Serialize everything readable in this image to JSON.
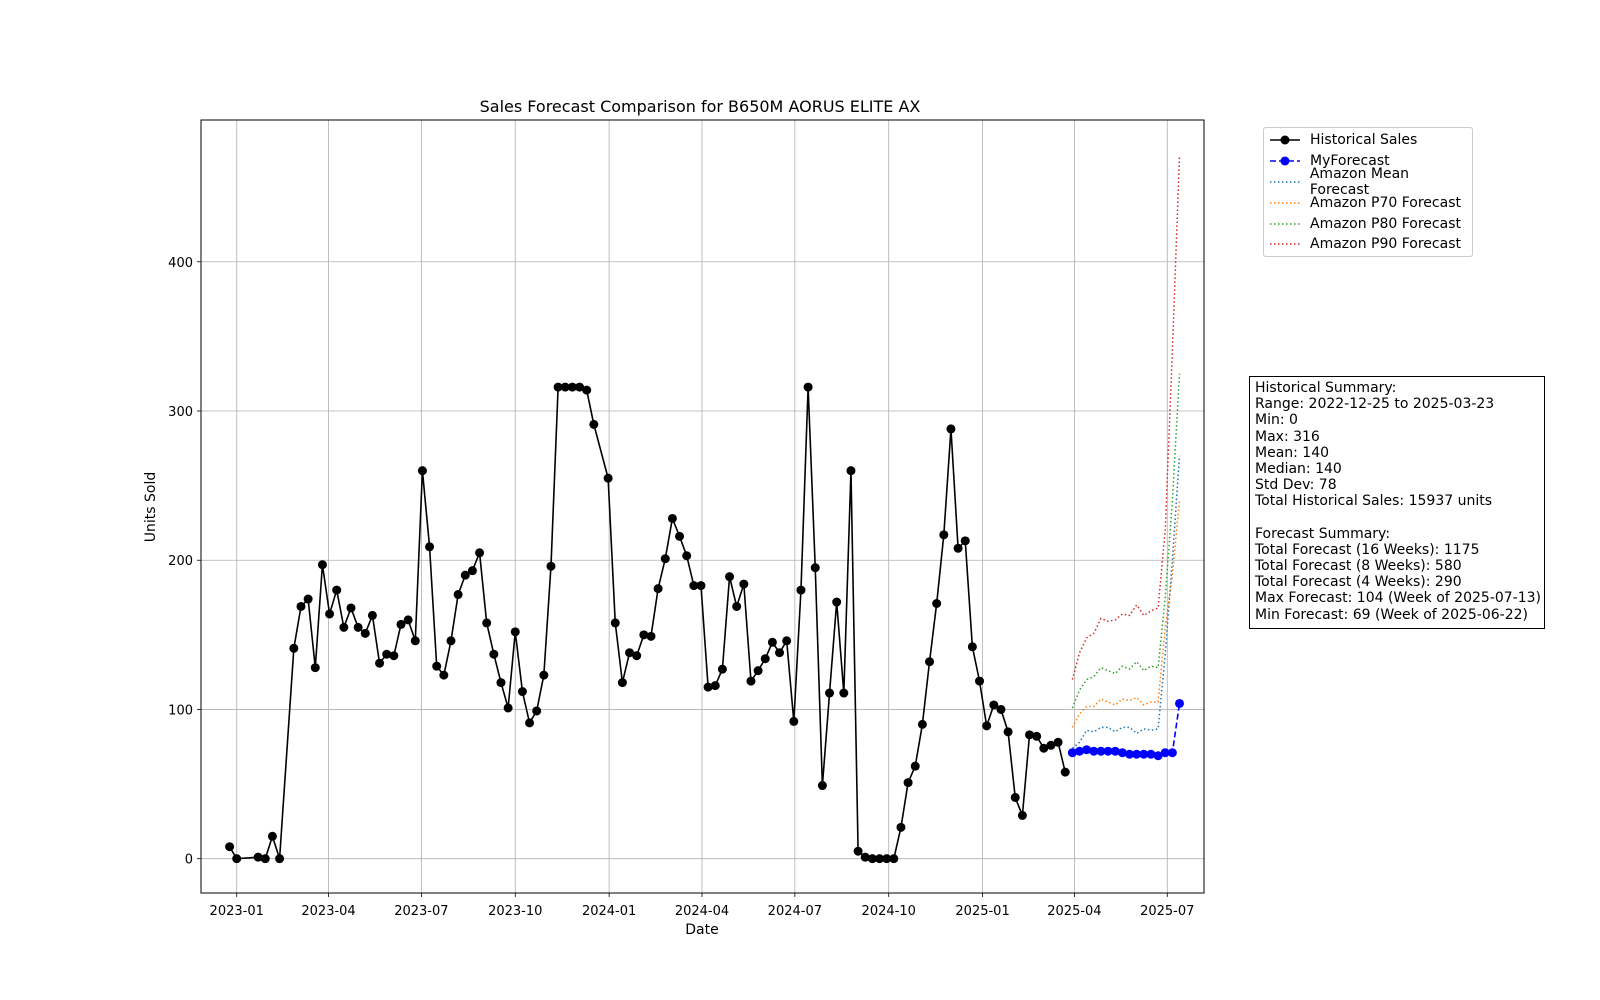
{
  "chart_data": {
    "type": "line",
    "title": "Sales Forecast Comparison for B650M AORUS ELITE AX",
    "xlabel": "Date",
    "ylabel": "Units Sold",
    "xlim": [
      "2022-11-27",
      "2025-08-06"
    ],
    "ylim": [
      -23,
      495
    ],
    "grid": true,
    "legend_placement": "outside-top-right",
    "x_ticks": [
      "2023-01",
      "2023-04",
      "2023-07",
      "2023-10",
      "2024-01",
      "2024-04",
      "2024-07",
      "2024-10",
      "2025-01",
      "2025-04",
      "2025-07"
    ],
    "y_ticks": [
      0,
      100,
      200,
      300,
      400
    ],
    "historical": {
      "name": "Historical Sales",
      "color": "#000000",
      "points": [
        [
          "2022-12-25",
          8
        ],
        [
          "2023-01-01",
          0
        ],
        [
          "2023-01-22",
          1
        ],
        [
          "2023-01-29",
          0
        ],
        [
          "2023-02-05",
          15
        ],
        [
          "2023-02-12",
          0
        ],
        [
          "2023-02-26",
          141
        ],
        [
          "2023-03-05",
          169
        ],
        [
          "2023-03-12",
          174
        ],
        [
          "2023-03-19",
          128
        ],
        [
          "2023-03-26",
          197
        ],
        [
          "2023-04-02",
          164
        ],
        [
          "2023-04-09",
          180
        ],
        [
          "2023-04-16",
          155
        ],
        [
          "2023-04-23",
          168
        ],
        [
          "2023-04-30",
          155
        ],
        [
          "2023-05-07",
          151
        ],
        [
          "2023-05-14",
          163
        ],
        [
          "2023-05-21",
          131
        ],
        [
          "2023-05-28",
          137
        ],
        [
          "2023-06-04",
          136
        ],
        [
          "2023-06-11",
          157
        ],
        [
          "2023-06-18",
          160
        ],
        [
          "2023-06-25",
          146
        ],
        [
          "2023-07-02",
          260
        ],
        [
          "2023-07-09",
          209
        ],
        [
          "2023-07-16",
          129
        ],
        [
          "2023-07-23",
          123
        ],
        [
          "2023-07-30",
          146
        ],
        [
          "2023-08-06",
          177
        ],
        [
          "2023-08-13",
          190
        ],
        [
          "2023-08-20",
          193
        ],
        [
          "2023-08-27",
          205
        ],
        [
          "2023-09-03",
          158
        ],
        [
          "2023-09-10",
          137
        ],
        [
          "2023-09-17",
          118
        ],
        [
          "2023-09-24",
          101
        ],
        [
          "2023-10-01",
          152
        ],
        [
          "2023-10-08",
          112
        ],
        [
          "2023-10-15",
          91
        ],
        [
          "2023-10-22",
          99
        ],
        [
          "2023-10-29",
          123
        ],
        [
          "2023-11-05",
          196
        ],
        [
          "2023-11-12",
          316
        ],
        [
          "2023-11-19",
          316
        ],
        [
          "2023-11-26",
          316
        ],
        [
          "2023-12-03",
          316
        ],
        [
          "2023-12-10",
          314
        ],
        [
          "2023-12-17",
          291
        ],
        [
          "2023-12-31",
          255
        ],
        [
          "2024-01-07",
          158
        ],
        [
          "2024-01-14",
          118
        ],
        [
          "2024-01-21",
          138
        ],
        [
          "2024-01-28",
          136
        ],
        [
          "2024-02-04",
          150
        ],
        [
          "2024-02-11",
          149
        ],
        [
          "2024-02-18",
          181
        ],
        [
          "2024-02-25",
          201
        ],
        [
          "2024-03-03",
          228
        ],
        [
          "2024-03-10",
          216
        ],
        [
          "2024-03-17",
          203
        ],
        [
          "2024-03-24",
          183
        ],
        [
          "2024-03-31",
          183
        ],
        [
          "2024-04-07",
          115
        ],
        [
          "2024-04-14",
          116
        ],
        [
          "2024-04-21",
          127
        ],
        [
          "2024-04-28",
          189
        ],
        [
          "2024-05-05",
          169
        ],
        [
          "2024-05-12",
          184
        ],
        [
          "2024-05-19",
          119
        ],
        [
          "2024-05-26",
          126
        ],
        [
          "2024-06-02",
          134
        ],
        [
          "2024-06-09",
          145
        ],
        [
          "2024-06-16",
          138
        ],
        [
          "2024-06-23",
          146
        ],
        [
          "2024-06-30",
          92
        ],
        [
          "2024-07-07",
          180
        ],
        [
          "2024-07-14",
          316
        ],
        [
          "2024-07-21",
          195
        ],
        [
          "2024-07-28",
          49
        ],
        [
          "2024-08-04",
          111
        ],
        [
          "2024-08-11",
          172
        ],
        [
          "2024-08-18",
          111
        ],
        [
          "2024-08-25",
          260
        ],
        [
          "2024-09-01",
          5
        ],
        [
          "2024-09-08",
          1
        ],
        [
          "2024-09-15",
          0
        ],
        [
          "2024-09-22",
          0
        ],
        [
          "2024-09-29",
          0
        ],
        [
          "2024-10-06",
          0
        ],
        [
          "2024-10-13",
          21
        ],
        [
          "2024-10-20",
          51
        ],
        [
          "2024-10-27",
          62
        ],
        [
          "2024-11-03",
          90
        ],
        [
          "2024-11-10",
          132
        ],
        [
          "2024-11-17",
          171
        ],
        [
          "2024-11-24",
          217
        ],
        [
          "2024-12-01",
          288
        ],
        [
          "2024-12-08",
          208
        ],
        [
          "2024-12-15",
          213
        ],
        [
          "2024-12-22",
          142
        ],
        [
          "2024-12-29",
          119
        ],
        [
          "2025-01-05",
          89
        ],
        [
          "2025-01-12",
          103
        ],
        [
          "2025-01-19",
          100
        ],
        [
          "2025-01-26",
          85
        ],
        [
          "2025-02-02",
          41
        ],
        [
          "2025-02-09",
          29
        ],
        [
          "2025-02-16",
          83
        ],
        [
          "2025-02-23",
          82
        ],
        [
          "2025-03-02",
          74
        ],
        [
          "2025-03-09",
          76
        ],
        [
          "2025-03-16",
          78
        ],
        [
          "2025-03-23",
          58
        ]
      ]
    },
    "forecast_dates": [
      "2025-03-30",
      "2025-04-06",
      "2025-04-13",
      "2025-04-20",
      "2025-04-27",
      "2025-05-04",
      "2025-05-11",
      "2025-05-18",
      "2025-05-25",
      "2025-06-01",
      "2025-06-08",
      "2025-06-15",
      "2025-06-22",
      "2025-06-29",
      "2025-07-06",
      "2025-07-13"
    ],
    "series": [
      {
        "name": "MyForecast",
        "color": "#0000ff",
        "style": "dashed-markers",
        "values": [
          71,
          72,
          73,
          72,
          72,
          72,
          72,
          71,
          70,
          70,
          70,
          70,
          69,
          71,
          71,
          104
        ]
      },
      {
        "name": "Amazon Mean Forecast",
        "color": "#1f77b4",
        "style": "dotted",
        "values": [
          74,
          78,
          86,
          85,
          88,
          88,
          85,
          88,
          88,
          84,
          87,
          86,
          87,
          137,
          200,
          270
        ]
      },
      {
        "name": "Amazon P70 Forecast",
        "color": "#ff7f0e",
        "style": "dotted",
        "values": [
          88,
          97,
          102,
          102,
          107,
          105,
          103,
          107,
          106,
          108,
          103,
          105,
          105,
          155,
          190,
          240
        ]
      },
      {
        "name": "Amazon P80 Forecast",
        "color": "#2ca02c",
        "style": "dotted",
        "values": [
          101,
          113,
          120,
          122,
          128,
          126,
          124,
          129,
          127,
          132,
          126,
          129,
          128,
          175,
          240,
          325
        ]
      },
      {
        "name": "Amazon P90 Forecast",
        "color": "#d62728",
        "style": "dotted",
        "values": [
          120,
          138,
          148,
          151,
          161,
          159,
          160,
          164,
          163,
          170,
          163,
          166,
          168,
          220,
          340,
          471
        ]
      }
    ],
    "legend_entries": [
      "Historical Sales",
      "MyForecast",
      "Amazon Mean Forecast",
      "Amazon P70 Forecast",
      "Amazon P80 Forecast",
      "Amazon P90 Forecast"
    ],
    "annotation_lines": [
      "Historical Summary:",
      "Range: 2022-12-25 to 2025-03-23",
      "Min: 0",
      "Max: 316",
      "Mean: 140",
      "Median: 140",
      "Std Dev: 78",
      "Total Historical Sales: 15937 units",
      "",
      "Forecast Summary:",
      "Total Forecast (16 Weeks): 1175",
      "Total Forecast (8 Weeks): 580",
      "Total Forecast (4 Weeks): 290",
      "Max Forecast: 104 (Week of 2025-07-13)",
      "Min Forecast: 69 (Week of 2025-06-22)"
    ]
  }
}
